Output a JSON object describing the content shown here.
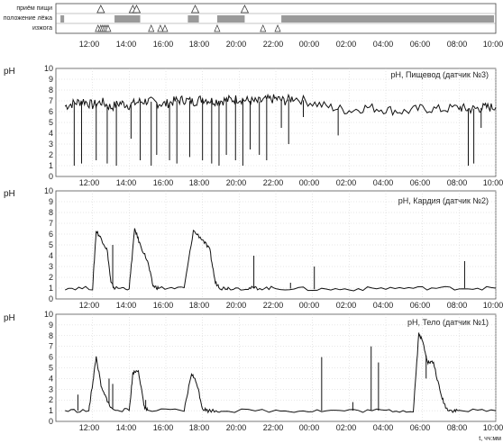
{
  "events_panel": {
    "rows": [
      "приём пищи",
      "положение лёжа",
      "изжога"
    ],
    "meal_times": [
      12.45,
      14.2,
      14.4,
      17.6,
      20.3
    ],
    "supine_intervals": [
      [
        10.25,
        10.45
      ],
      [
        13.2,
        14.6
      ],
      [
        17.2,
        17.8
      ],
      [
        18.8,
        20.3
      ],
      [
        22.3,
        33.9
      ]
    ],
    "heartburn_times": [
      12.3,
      12.45,
      12.55,
      12.65,
      12.75,
      12.85,
      15.2,
      15.7,
      15.95,
      18.8,
      21.3,
      22.1
    ]
  },
  "time_ticks": [
    "12:00",
    "14:00",
    "16:00",
    "18:00",
    "20:00",
    "22:00",
    "00:00",
    "02:00",
    "04:00",
    "06:00",
    "08:00",
    "10:00"
  ],
  "x_axis_label": "t, чч:мм",
  "colors": {
    "trace": "#111111",
    "supine": "#9a9a9a",
    "grid": "#cfcfcf"
  },
  "chart_data": [
    {
      "type": "line",
      "title": "pH, Пищевод (датчик №3)",
      "ylabel": "pH",
      "ylim": [
        0,
        10
      ],
      "y_ticks": [
        0,
        1,
        2,
        3,
        4,
        5,
        6,
        7,
        8,
        9,
        10
      ],
      "x": [
        10.5,
        11.0,
        11.5,
        12.0,
        12.5,
        13.0,
        13.5,
        14.0,
        14.5,
        15.0,
        15.5,
        16.0,
        16.5,
        17.0,
        17.5,
        18.0,
        18.5,
        19.0,
        19.5,
        20.0,
        20.5,
        21.0,
        21.5,
        22.0,
        22.5,
        23.0,
        24.0,
        25.0,
        26.0,
        27.0,
        28.0,
        29.0,
        30.0,
        31.0,
        32.0,
        32.5,
        33.0,
        33.5,
        34.0
      ],
      "values": [
        6.5,
        6.8,
        7.0,
        6.6,
        6.9,
        6.4,
        6.8,
        6.6,
        6.9,
        7.0,
        6.8,
        6.7,
        7.0,
        7.1,
        6.9,
        7.2,
        7.0,
        7.0,
        7.1,
        7.2,
        7.0,
        6.9,
        7.1,
        7.2,
        7.0,
        7.3,
        6.8,
        6.4,
        6.1,
        6.4,
        6.2,
        6.0,
        6.3,
        6.2,
        6.4,
        6.2,
        6.3,
        6.4,
        6.4
      ],
      "dips": [
        [
          11.0,
          1.0
        ],
        [
          11.4,
          1.2
        ],
        [
          12.2,
          1.5
        ],
        [
          12.8,
          1.2
        ],
        [
          13.3,
          1.0
        ],
        [
          14.1,
          3.5
        ],
        [
          14.6,
          1.5
        ],
        [
          15.2,
          1.0
        ],
        [
          15.5,
          2.0
        ],
        [
          16.2,
          1.5
        ],
        [
          16.6,
          1.2
        ],
        [
          17.3,
          1.8
        ],
        [
          18.0,
          1.5
        ],
        [
          18.5,
          1.2
        ],
        [
          18.9,
          1.0
        ],
        [
          19.3,
          2.0
        ],
        [
          19.8,
          1.5
        ],
        [
          20.2,
          1.0
        ],
        [
          20.6,
          2.5
        ],
        [
          21.1,
          2.0
        ],
        [
          21.5,
          1.5
        ],
        [
          22.3,
          4.5
        ],
        [
          22.7,
          3.0
        ],
        [
          23.5,
          5.5
        ],
        [
          25.4,
          3.8
        ],
        [
          32.5,
          1.0
        ],
        [
          32.8,
          1.2
        ],
        [
          33.2,
          4.5
        ]
      ]
    },
    {
      "type": "line",
      "title": "pH, Кардия (датчик №2)",
      "ylabel": "pH",
      "ylim": [
        0,
        10
      ],
      "y_ticks": [
        0,
        1,
        2,
        3,
        4,
        5,
        6,
        7,
        8,
        9,
        10
      ],
      "x": [
        10.5,
        12.0,
        12.2,
        12.5,
        12.8,
        13.0,
        13.2,
        14.0,
        14.3,
        14.6,
        15.0,
        15.3,
        15.6,
        17.0,
        17.5,
        18.0,
        18.4,
        18.7,
        19.0,
        19.4,
        20.5,
        21.0,
        22.0,
        24.0,
        26.0,
        28.0,
        30.0,
        32.0,
        34.0
      ],
      "values": [
        1.0,
        1.0,
        6.3,
        5.5,
        4.5,
        1.5,
        1.0,
        1.0,
        6.5,
        5.0,
        3.5,
        1.2,
        1.0,
        1.0,
        6.3,
        5.5,
        4.5,
        1.5,
        1.0,
        1.0,
        1.0,
        1.0,
        1.0,
        0.9,
        0.9,
        1.0,
        1.0,
        1.0,
        1.0
      ],
      "dips": [
        [
          13.1,
          5.0
        ],
        [
          20.8,
          4.0
        ],
        [
          22.8,
          1.5
        ],
        [
          24.1,
          3.0
        ],
        [
          32.3,
          3.5
        ]
      ]
    },
    {
      "type": "line",
      "title": "pH, Тело (датчик №1)",
      "ylabel": "pH",
      "ylim": [
        0,
        10
      ],
      "y_ticks": [
        0,
        1,
        2,
        3,
        4,
        5,
        6,
        7,
        8,
        9,
        10
      ],
      "x": [
        10.5,
        11.8,
        12.0,
        12.2,
        12.5,
        12.8,
        13.0,
        14.0,
        14.2,
        14.5,
        14.8,
        15.0,
        17.0,
        17.4,
        17.7,
        18.0,
        18.3,
        19.0,
        22.0,
        24.0,
        26.0,
        28.0,
        29.5,
        29.8,
        30.0,
        30.3,
        30.6,
        31.0,
        31.3,
        31.6,
        32.0,
        34.0
      ],
      "values": [
        1.0,
        1.0,
        3.5,
        6.0,
        3.0,
        2.0,
        1.2,
        1.0,
        4.5,
        4.8,
        1.5,
        1.0,
        1.0,
        4.5,
        3.5,
        1.2,
        1.0,
        1.0,
        1.0,
        1.0,
        1.0,
        1.0,
        1.0,
        8.2,
        7.5,
        5.5,
        5.5,
        2.5,
        1.2,
        1.0,
        1.0,
        1.0
      ],
      "dips": [
        [
          11.2,
          2.5
        ],
        [
          12.9,
          4.0
        ],
        [
          13.1,
          3.5
        ],
        [
          14.9,
          2.0
        ],
        [
          24.5,
          6.0
        ],
        [
          26.2,
          1.8
        ],
        [
          27.2,
          7.0
        ],
        [
          27.6,
          5.5
        ],
        [
          30.2,
          4.0
        ]
      ]
    }
  ]
}
